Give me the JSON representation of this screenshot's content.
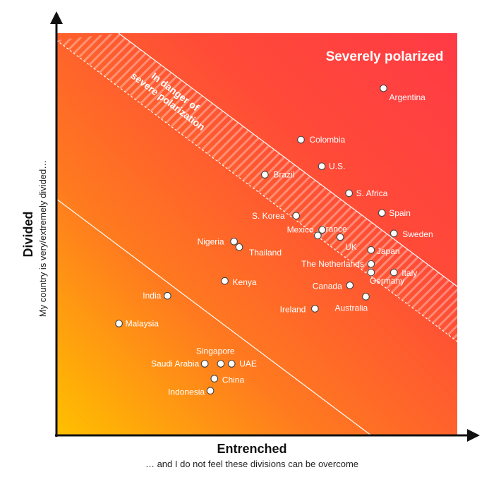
{
  "chart_data": {
    "type": "scatter",
    "xlabel": "Entrenched",
    "xsublabel": "… and I do not feel these divisions can be overcome",
    "ylabel": "Divided",
    "ysublabel": "My country is very/extremely  divided…",
    "region_label": "Severely polarized",
    "band_label_line1": "In danger of",
    "band_label_line2": "severe polarization",
    "xlim": [
      0,
      100
    ],
    "ylim": [
      0,
      100
    ],
    "gradient_colors": [
      "#ffc000",
      "#ff7a1f",
      "#ff4a38",
      "#ff3a46"
    ],
    "points": [
      {
        "label": "Argentina",
        "x": 81.6,
        "y": 86.3
      },
      {
        "label": "Colombia",
        "x": 61.0,
        "y": 73.5
      },
      {
        "label": "U.S.",
        "x": 66.2,
        "y": 66.9
      },
      {
        "label": "Brazil",
        "x": 52.0,
        "y": 64.8
      },
      {
        "label": "S. Africa",
        "x": 73.0,
        "y": 60.2
      },
      {
        "label": "Spain",
        "x": 81.2,
        "y": 55.3
      },
      {
        "label": "S. Korea",
        "x": 59.8,
        "y": 54.6
      },
      {
        "label": "Sweden",
        "x": 84.2,
        "y": 50.2
      },
      {
        "label": "France",
        "x": 65.2,
        "y": 49.7
      },
      {
        "label": "Mexico",
        "x": 66.3,
        "y": 51.1
      },
      {
        "label": "UK",
        "x": 70.8,
        "y": 49.3
      },
      {
        "label": "Nigeria",
        "x": 44.3,
        "y": 48.2
      },
      {
        "label": "Thailand",
        "x": 45.6,
        "y": 46.8
      },
      {
        "label": "Japan",
        "x": 78.5,
        "y": 46.1
      },
      {
        "label": "The Netherlands",
        "x": 78.5,
        "y": 42.6
      },
      {
        "label": "Italy",
        "x": 84.2,
        "y": 40.5
      },
      {
        "label": "Germany",
        "x": 78.5,
        "y": 40.5
      },
      {
        "label": "Kenya",
        "x": 42.0,
        "y": 38.4
      },
      {
        "label": "Canada",
        "x": 73.2,
        "y": 37.3
      },
      {
        "label": "Australia",
        "x": 77.2,
        "y": 34.5
      },
      {
        "label": "India",
        "x": 27.7,
        "y": 34.7
      },
      {
        "label": "Ireland",
        "x": 64.5,
        "y": 31.5
      },
      {
        "label": "Malaysia",
        "x": 15.6,
        "y": 27.8
      },
      {
        "label": "Singapore",
        "x": 41.0,
        "y": 17.8
      },
      {
        "label": "Saudi Arabia",
        "x": 37.0,
        "y": 17.8
      },
      {
        "label": "UAE",
        "x": 43.7,
        "y": 17.8
      },
      {
        "label": "China",
        "x": 39.4,
        "y": 14.1
      },
      {
        "label": "Indonesia",
        "x": 38.4,
        "y": 11.1
      }
    ]
  }
}
